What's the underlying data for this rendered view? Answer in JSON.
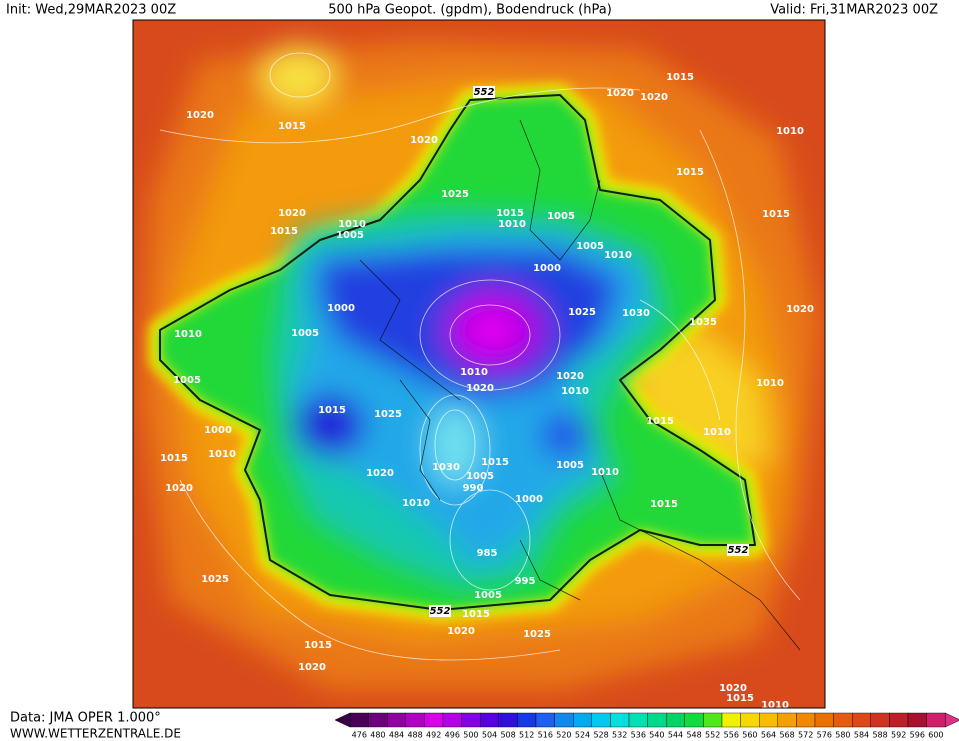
{
  "header": {
    "init": "Init: Wed,29MAR2023 00Z",
    "title": "500 hPa Geopot. (gpdm), Bodendruck (hPa)",
    "valid": "Valid: Fri,31MAR2023 00Z"
  },
  "map": {
    "contour_labels": [
      "1015",
      "1020",
      "1020",
      "1010",
      "1015",
      "1015",
      "1020",
      "1015",
      "1020",
      "1025",
      "1020",
      "1015",
      "1010",
      "1005",
      "1015",
      "1010",
      "1005",
      "1005",
      "1010",
      "1000",
      "1000",
      "1005",
      "1010",
      "1025",
      "1030",
      "1035",
      "1020",
      "1010",
      "1020",
      "1020",
      "1010",
      "1010",
      "1005",
      "1015",
      "1025",
      "1000",
      "1015",
      "1010",
      "1015",
      "1010",
      "1030",
      "1015",
      "1005",
      "1010",
      "1020",
      "1005",
      "990",
      "1020",
      "1000",
      "1010",
      "1015",
      "985",
      "995",
      "1005",
      "1015",
      "1020",
      "1025",
      "1025",
      "1015",
      "1020",
      "1020",
      "1015",
      "1010"
    ],
    "height_labels": [
      "552",
      "552",
      "552"
    ]
  },
  "colorbar": {
    "labels": [
      "476",
      "480",
      "484",
      "488",
      "492",
      "496",
      "500",
      "504",
      "508",
      "512",
      "516",
      "520",
      "524",
      "528",
      "532",
      "536",
      "540",
      "544",
      "548",
      "552",
      "556",
      "560",
      "564",
      "568",
      "572",
      "576",
      "580",
      "584",
      "588",
      "592",
      "596",
      "600"
    ],
    "colors": [
      "#4b0058",
      "#6c007c",
      "#8e00a0",
      "#b000c4",
      "#d800e8",
      "#b400e8",
      "#8400e4",
      "#5a00e0",
      "#3010dc",
      "#1838e8",
      "#2060f0",
      "#1088f0",
      "#00aaf0",
      "#00c8ee",
      "#00e0dc",
      "#00e0b4",
      "#00d88c",
      "#00d464",
      "#10dc3c",
      "#50e818",
      "#f0f000",
      "#f8d800",
      "#f8bc00",
      "#f4a000",
      "#f08800",
      "#ec7000",
      "#e45c10",
      "#dc4818",
      "#d03420",
      "#bc2028",
      "#a81030",
      "#d0206a"
    ],
    "low_color": "#3a0048",
    "high_color": "#e0308a"
  },
  "footer": {
    "data": "Data: JMA OPER 1.000°",
    "site": "WWW.WETTERZENTRALE.DE"
  }
}
